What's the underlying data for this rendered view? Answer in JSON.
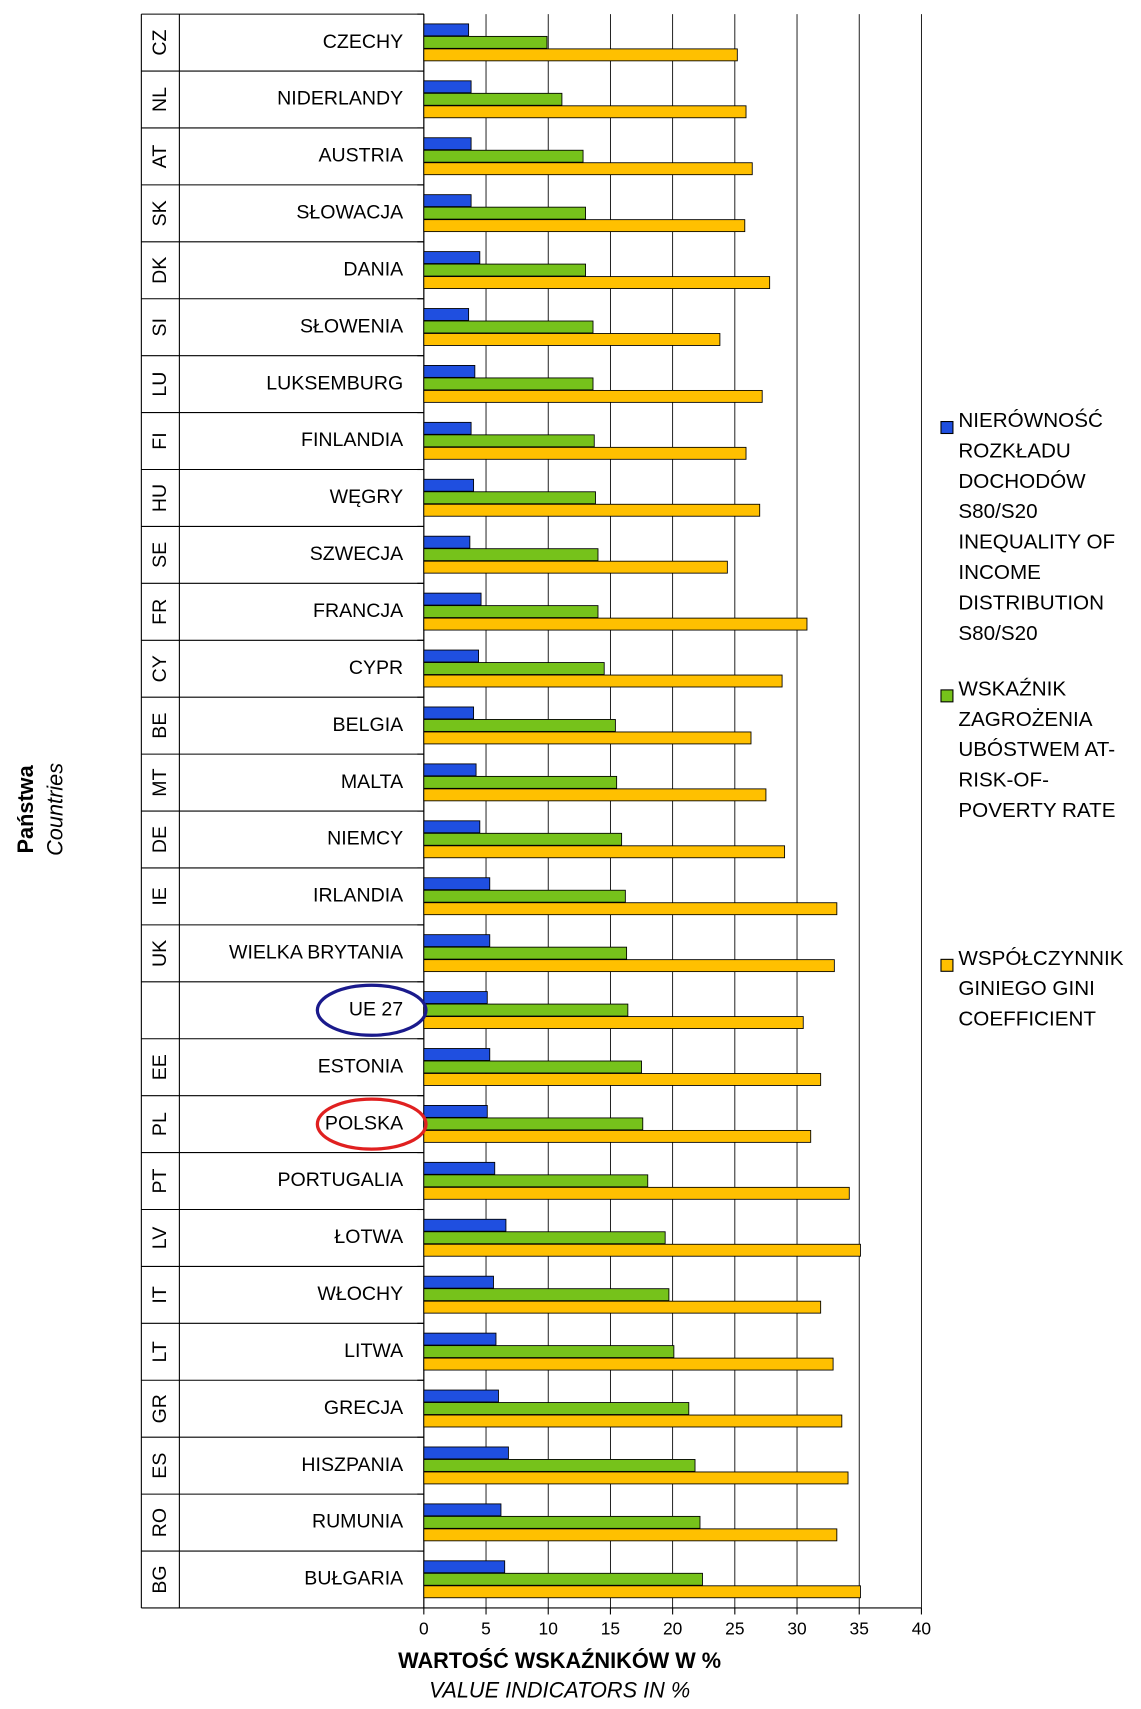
{
  "chart_data": {
    "type": "bar",
    "orientation": "horizontal",
    "ylabel": "Państwa",
    "ylabel_sub": "Countries",
    "xlabel": "WARTOŚĆ WSKAŹNIKÓW W %",
    "xlabel_sub": "VALUE INDICATORS IN %",
    "codes": [
      "CZ",
      "NL",
      "AT",
      "SK",
      "DK",
      "SI",
      "LU",
      "FI",
      "HU",
      "SE",
      "FR",
      "CY",
      "BE",
      "MT",
      "DE",
      "IE",
      "UK",
      null,
      "EE",
      "PL",
      "PT",
      "LV",
      "IT",
      "LT",
      "GR",
      "ES",
      "RO",
      "BG"
    ],
    "categories": [
      "CZECHY",
      "NIDERLANDY",
      "AUSTRIA",
      "SŁOWACJA",
      "DANIA",
      "SŁOWENIA",
      "LUKSEMBURG",
      "FINLANDIA",
      "WĘGRY",
      "SZWECJA",
      "FRANCJA",
      "CYPR",
      "BELGIA",
      "MALTA",
      "NIEMCY",
      "IRLANDIA",
      "WIELKA BRYTANIA",
      "UE 27",
      "ESTONIA",
      "POLSKA",
      "PORTUGALIA",
      "ŁOTWA",
      "WŁOCHY",
      "LITWA",
      "GRECJA",
      "HISZPANIA",
      "RUMUNIA",
      "BUŁGARIA"
    ],
    "series": [
      {
        "name": "NIERÓWNOŚĆ ROZKŁADU DOCHODÓW S80/S20 INEQUALITY OF INCOME DISTRIBUTION S80/S20",
        "color": "#1f4fe0",
        "values": [
          3.6,
          3.8,
          3.8,
          3.8,
          4.5,
          3.6,
          4.1,
          3.8,
          4.0,
          3.7,
          4.6,
          4.4,
          4.0,
          4.2,
          4.5,
          5.3,
          5.3,
          5.1,
          5.3,
          5.1,
          5.7,
          6.6,
          5.6,
          5.8,
          6.0,
          6.8,
          6.2,
          6.5
        ]
      },
      {
        "name": "WSKAŹNIK ZAGROŻENIA UBÓSTWEM AT-RISK-OF-POVERTY RATE",
        "color": "#76c21b",
        "values": [
          9.9,
          11.1,
          12.8,
          13.0,
          13.0,
          13.6,
          13.6,
          13.7,
          13.8,
          14.0,
          14.0,
          14.5,
          15.4,
          15.5,
          15.9,
          16.2,
          16.3,
          16.4,
          17.5,
          17.6,
          18.0,
          19.4,
          19.7,
          20.1,
          21.3,
          21.8,
          22.2,
          22.4
        ]
      },
      {
        "name": "WSPÓŁCZYNNIK GINIEGO GINI COEFFICIENT",
        "color": "#ffc000",
        "values": [
          25.2,
          25.9,
          26.4,
          25.8,
          27.8,
          23.8,
          27.2,
          25.9,
          27.0,
          24.4,
          30.8,
          28.8,
          26.3,
          27.5,
          29.0,
          33.2,
          33.0,
          30.5,
          31.9,
          31.1,
          34.2,
          35.1,
          31.9,
          32.9,
          33.6,
          34.1,
          33.2,
          35.1
        ]
      }
    ],
    "xlim": [
      0,
      40
    ],
    "xticks": [
      0,
      5,
      10,
      15,
      20,
      25,
      30,
      35,
      40
    ],
    "grid": true,
    "legend": "right"
  }
}
